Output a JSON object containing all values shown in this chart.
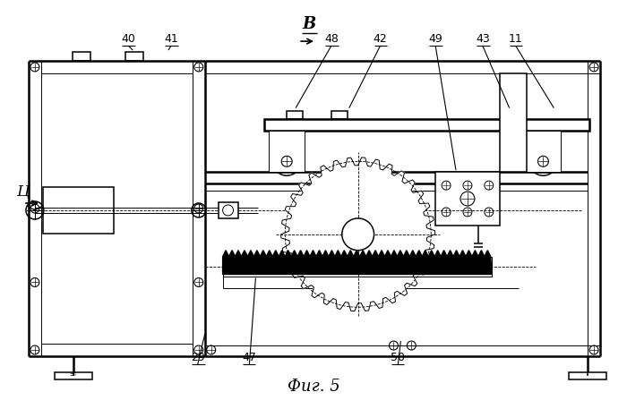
{
  "title": "Фиг. 5",
  "view_label": "В",
  "direction_label": "Ц",
  "bg_color": "#ffffff",
  "line_color": "#000000",
  "figsize": [
    7.0,
    4.57
  ],
  "dpi": 100
}
